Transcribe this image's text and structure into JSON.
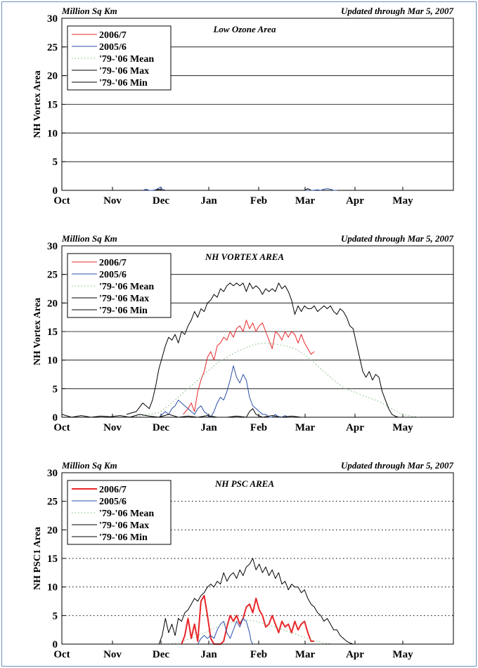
{
  "chart_data": [
    {
      "type": "line",
      "title": "Low Ozone Area",
      "header_left": "Million Sq Km",
      "header_right": "Updated through Mar 5, 2007",
      "ylabel": "NH Vortex Area",
      "ylim": [
        0,
        30
      ],
      "yticks": [
        "0",
        "5",
        "10",
        "15",
        "20",
        "25",
        "30"
      ],
      "x_tick_labels": [
        "Oct",
        "Nov",
        "Dec",
        "Jan",
        "Feb",
        "Mar",
        "Apr",
        "May"
      ],
      "xlim_days": [
        0,
        242
      ],
      "grid": "solid horizontal",
      "legend": "top-left",
      "legend_labels": [
        "2006/7",
        "2005/6",
        "'79-'06 Mean",
        "'79-'06 Max",
        "'79-'06 Min"
      ],
      "series": [
        {
          "name": "2006/7",
          "color": "#e8262a",
          "style": "solid",
          "x": [],
          "y": []
        },
        {
          "name": "2005/6",
          "color": "#2a4fa8",
          "style": "solid",
          "x": [
            50,
            52,
            54,
            56,
            58,
            60,
            61,
            62,
            64,
            66,
            68,
            155,
            158,
            160,
            162,
            164,
            166,
            168,
            170
          ],
          "y": [
            0,
            0.2,
            0,
            0,
            0.1,
            0.4,
            0.6,
            0.2,
            0,
            0,
            0,
            0,
            0.1,
            0,
            0.2,
            0.3,
            0.2,
            0,
            0
          ]
        },
        {
          "name": "'79-'06 Mean",
          "color": "#77b877",
          "style": "dotted",
          "x": [],
          "y": []
        },
        {
          "name": "'79-'06 Max",
          "color": "#000000",
          "style": "solid",
          "x": [
            58,
            60,
            62,
            150,
            152,
            154
          ],
          "y": [
            0,
            0.2,
            0,
            0,
            0.3,
            0
          ]
        },
        {
          "name": "'79-'06 Min",
          "color": "#000000",
          "style": "solid",
          "x": [],
          "y": []
        }
      ]
    },
    {
      "type": "line",
      "title": "NH VORTEX AREA",
      "header_left": "Million Sq Km",
      "header_right": "Updated through Mar 5, 2007",
      "ylabel": "NH Vortex Area",
      "ylim": [
        0,
        30
      ],
      "yticks": [
        "0",
        "5",
        "10",
        "15",
        "20",
        "25",
        "30"
      ],
      "x_tick_labels": [
        "Oct",
        "Nov",
        "Dec",
        "Jan",
        "Feb",
        "Mar",
        "Apr",
        "May"
      ],
      "xlim_days": [
        0,
        242
      ],
      "grid": "solid horizontal",
      "legend": "top-left",
      "legend_labels": [
        "2006/7",
        "2005/6",
        "'79-'06 Mean",
        "'79-'06 Max",
        "'79-'06 Min"
      ],
      "series": [
        {
          "name": "2006/7",
          "color": "#e8262a",
          "style": "solid",
          "x": [
            75,
            78,
            80,
            82,
            84,
            86,
            88,
            90,
            92,
            94,
            96,
            98,
            100,
            102,
            104,
            106,
            108,
            110,
            112,
            114,
            116,
            118,
            120,
            122,
            124,
            126,
            128,
            130,
            132,
            134,
            136,
            138,
            140,
            142,
            144,
            146,
            148,
            150,
            152,
            154,
            156
          ],
          "y": [
            0.5,
            1.5,
            2.5,
            1.0,
            4.5,
            6.5,
            8.0,
            10.5,
            11.5,
            10.0,
            12.5,
            13.0,
            14.0,
            13.5,
            15.0,
            14.0,
            15.5,
            16.0,
            15.0,
            17.0,
            15.5,
            16.5,
            15.0,
            16.0,
            16.5,
            15.0,
            13.5,
            12.0,
            15.0,
            14.5,
            13.5,
            15.0,
            14.0,
            15.0,
            14.5,
            13.0,
            14.5,
            13.0,
            12.0,
            11.0,
            11.5
          ]
        },
        {
          "name": "2005/6",
          "color": "#2a4fa8",
          "style": "solid",
          "x": [
            60,
            62,
            64,
            66,
            68,
            70,
            72,
            74,
            76,
            78,
            80,
            82,
            84,
            86,
            88,
            90,
            92,
            94,
            96,
            98,
            100,
            102,
            104,
            106,
            108,
            110,
            112,
            114,
            116,
            118,
            120,
            122,
            124,
            126,
            128,
            130,
            132,
            134,
            136,
            138,
            140
          ],
          "y": [
            0,
            0.5,
            1.0,
            0.5,
            1.5,
            2.0,
            3.0,
            2.5,
            2.0,
            1.5,
            1.0,
            0.5,
            1.5,
            2.0,
            1.0,
            0.5,
            0,
            1.0,
            2.5,
            3.5,
            3.0,
            4.5,
            6.5,
            9.0,
            7.0,
            6.0,
            7.5,
            6.5,
            3.5,
            2.0,
            1.5,
            1.0,
            0.5,
            0.5,
            0,
            0,
            0.5,
            0,
            0,
            0.3,
            0
          ]
        },
        {
          "name": "'79-'06 Mean",
          "color": "#77b877",
          "style": "dotted",
          "x": [
            40,
            50,
            60,
            66,
            72,
            78,
            84,
            90,
            96,
            102,
            108,
            114,
            120,
            126,
            132,
            138,
            144,
            150,
            156,
            162,
            168,
            174,
            180,
            186,
            192,
            198,
            204,
            210,
            216,
            222
          ],
          "y": [
            0,
            0.3,
            0.8,
            2.0,
            3.5,
            5.0,
            6.5,
            8.0,
            9.5,
            10.5,
            11.5,
            12.2,
            12.8,
            13.0,
            12.8,
            12.5,
            12.0,
            11.0,
            9.5,
            8.0,
            6.5,
            5.2,
            4.5,
            3.8,
            3.2,
            2.5,
            1.5,
            0.5,
            0.2,
            0
          ]
        },
        {
          "name": "'79-'06 Max",
          "color": "#000000",
          "style": "solid",
          "x": [
            40,
            46,
            50,
            54,
            56,
            58,
            60,
            62,
            64,
            66,
            68,
            70,
            72,
            74,
            76,
            78,
            80,
            82,
            84,
            86,
            88,
            90,
            92,
            94,
            96,
            98,
            100,
            102,
            104,
            106,
            108,
            110,
            112,
            114,
            116,
            118,
            120,
            122,
            124,
            126,
            128,
            130,
            132,
            134,
            136,
            138,
            140,
            142,
            144,
            146,
            148,
            150,
            152,
            154,
            156,
            158,
            160,
            162,
            164,
            166,
            168,
            170,
            172,
            174,
            176,
            178,
            180,
            182,
            184,
            186,
            188,
            190,
            192,
            194,
            196,
            198,
            200,
            202,
            204,
            206,
            208,
            210,
            212,
            214
          ],
          "y": [
            0.5,
            1.0,
            2.5,
            1.5,
            3.0,
            5.5,
            8.5,
            10.5,
            12.5,
            14.0,
            13.5,
            14.5,
            13.0,
            15.0,
            14.5,
            16.0,
            17.0,
            18.5,
            17.5,
            19.0,
            18.5,
            20.0,
            20.5,
            21.5,
            21.0,
            22.5,
            22.0,
            23.0,
            23.5,
            23.0,
            23.5,
            23.0,
            23.5,
            22.0,
            23.5,
            22.5,
            23.0,
            22.5,
            21.5,
            22.5,
            22.0,
            22.5,
            22.0,
            23.5,
            22.5,
            23.0,
            22.0,
            20.5,
            18.0,
            19.5,
            18.5,
            19.5,
            19.0,
            19.0,
            19.5,
            18.5,
            19.0,
            19.5,
            19.0,
            19.5,
            18.5,
            18.0,
            19.0,
            18.5,
            17.5,
            16.0,
            15.5,
            13.0,
            10.5,
            8.0,
            7.0,
            8.0,
            6.5,
            7.5,
            7.0,
            4.5,
            3.0,
            1.5,
            0.5,
            0.2,
            0,
            0,
            0,
            0
          ]
        },
        {
          "name": "'79-'06 Min",
          "color": "#000000",
          "style": "solid",
          "x": [
            0,
            6,
            12,
            18,
            24,
            30,
            36,
            42,
            48,
            54,
            60,
            66,
            72,
            78,
            84,
            90,
            96,
            102,
            108,
            114,
            116,
            118,
            120,
            124,
            130,
            136,
            142,
            148,
            154,
            160
          ],
          "y": [
            0.5,
            0,
            0.3,
            0,
            0.2,
            0.1,
            0.3,
            0,
            0.5,
            0.2,
            0,
            0.5,
            0,
            0.2,
            0,
            0.3,
            0,
            0,
            0.2,
            0,
            1.0,
            1.5,
            0.5,
            0,
            0.3,
            0,
            0.2,
            0,
            0,
            0
          ]
        }
      ]
    },
    {
      "type": "line",
      "title": "NH PSC AREA",
      "header_left": "Million Sq Km",
      "header_right": "Updated through Mar 5, 2007",
      "ylabel": "NH PSC1 Area",
      "ylim": [
        0,
        30
      ],
      "yticks": [
        "0",
        "5",
        "10",
        "15",
        "20",
        "25",
        "30"
      ],
      "x_tick_labels": [
        "Oct",
        "Nov",
        "Dec",
        "Jan",
        "Feb",
        "Mar",
        "Apr",
        "May"
      ],
      "xlim_days": [
        0,
        242
      ],
      "grid": "dotted horizontal",
      "legend": "top-left",
      "legend_labels": [
        "2006/7",
        "2005/6",
        "'79-'06 Mean",
        "'79-'06 Max",
        "'79-'06 Min"
      ],
      "series": [
        {
          "name": "2006/7",
          "color": "#e8262a",
          "style": "solid",
          "width": 2,
          "x": [
            74,
            76,
            78,
            80,
            82,
            84,
            86,
            88,
            90,
            92,
            94,
            96,
            98,
            100,
            102,
            104,
            106,
            108,
            110,
            112,
            114,
            116,
            118,
            120,
            122,
            124,
            126,
            128,
            130,
            132,
            134,
            136,
            138,
            140,
            142,
            144,
            146,
            148,
            150,
            152,
            154,
            156
          ],
          "y": [
            0,
            1.5,
            4.5,
            1.0,
            3.5,
            0.5,
            7.5,
            8.5,
            5.0,
            1.0,
            0,
            0,
            0,
            0.5,
            3.0,
            5.0,
            4.0,
            5.0,
            3.5,
            4.5,
            6.5,
            7.0,
            5.5,
            8.0,
            6.0,
            5.0,
            3.0,
            3.5,
            5.0,
            3.5,
            2.0,
            4.0,
            3.0,
            3.5,
            2.0,
            4.0,
            2.5,
            3.5,
            4.0,
            2.0,
            0.5,
            0.5
          ]
        },
        {
          "name": "2005/6",
          "color": "#2a4fa8",
          "style": "solid",
          "x": [
            84,
            86,
            88,
            90,
            92,
            94,
            96,
            98,
            100,
            102,
            104,
            106,
            108,
            110,
            112,
            114,
            116,
            117,
            118
          ],
          "y": [
            0,
            1.0,
            1.5,
            1.0,
            1.5,
            1.0,
            2.5,
            3.5,
            4.0,
            2.0,
            1.0,
            2.5,
            4.0,
            3.0,
            4.5,
            4.0,
            2.0,
            0.5,
            0
          ]
        },
        {
          "name": "'79-'06 Mean",
          "color": "#77b877",
          "style": "dotted",
          "x": [
            66,
            72,
            78,
            84,
            90,
            96,
            102,
            108,
            114,
            120,
            126,
            132,
            138,
            144,
            150,
            156,
            162,
            168
          ],
          "y": [
            0,
            0.3,
            0.8,
            1.5,
            2.2,
            3.0,
            3.6,
            4.0,
            4.2,
            4.0,
            3.5,
            3.0,
            2.4,
            1.8,
            1.2,
            0.6,
            0.2,
            0
          ]
        },
        {
          "name": "'79-'06 Max",
          "color": "#000000",
          "style": "solid",
          "x": [
            60,
            62,
            64,
            66,
            68,
            70,
            72,
            74,
            76,
            78,
            80,
            82,
            84,
            86,
            88,
            90,
            92,
            94,
            96,
            98,
            100,
            102,
            104,
            106,
            108,
            110,
            112,
            114,
            116,
            118,
            120,
            122,
            124,
            126,
            128,
            130,
            132,
            134,
            136,
            138,
            140,
            142,
            144,
            146,
            148,
            150,
            152,
            154,
            156,
            158,
            160,
            162,
            164,
            166,
            168,
            170,
            172,
            174,
            176,
            178,
            180,
            182
          ],
          "y": [
            0,
            1.5,
            4.5,
            2.0,
            3.5,
            1.5,
            4.5,
            4.0,
            5.5,
            6.0,
            7.0,
            8.0,
            7.5,
            8.5,
            9.0,
            10.0,
            10.5,
            10.0,
            11.0,
            10.5,
            12.5,
            11.0,
            12.0,
            12.5,
            11.5,
            13.0,
            12.0,
            13.5,
            14.0,
            15.0,
            13.0,
            14.0,
            12.5,
            13.5,
            12.0,
            13.0,
            11.5,
            12.5,
            10.5,
            11.0,
            9.5,
            10.5,
            10.0,
            10.0,
            9.0,
            9.5,
            8.0,
            7.0,
            6.5,
            5.5,
            5.0,
            4.0,
            4.5,
            3.5,
            2.5,
            2.5,
            1.5,
            1.0,
            0.5,
            0.2,
            0,
            0
          ]
        },
        {
          "name": "'79-'06 Min",
          "color": "#000000",
          "style": "solid",
          "x": [
            0,
            242
          ],
          "y": [
            0,
            0
          ]
        }
      ]
    }
  ]
}
